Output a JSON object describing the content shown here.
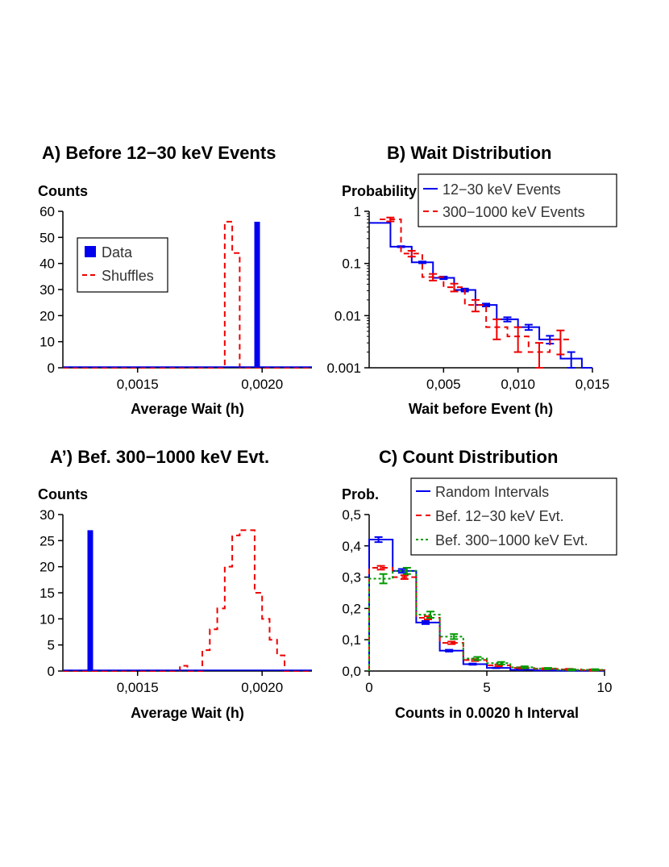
{
  "colors": {
    "blue": "#0000ee",
    "red": "#ee0000",
    "green": "#009900",
    "axis": "#000000"
  },
  "chart_data": [
    {
      "id": "A",
      "type": "histogram",
      "title": "A) Before 12−30 keV Events",
      "ylabel": "Counts",
      "xlabel": "Average Wait (h)",
      "xlim": [
        0.0012,
        0.0022
      ],
      "ylim": [
        0,
        60
      ],
      "xticks": [
        0.0015,
        0.002
      ],
      "xtick_labels": [
        "0,0015",
        "0,0020"
      ],
      "yticks": [
        0,
        10,
        20,
        30,
        40,
        50,
        60
      ],
      "ytick_labels": [
        "0",
        "10",
        "20",
        "30",
        "40",
        "50",
        "60"
      ],
      "legend": {
        "entries": [
          "Data",
          "Shuffles"
        ],
        "position": "upper-left"
      },
      "data_value": 0.00198,
      "data_count": 56,
      "shuffles": {
        "bin_edges": [
          0.00185,
          0.00188,
          0.00191,
          0.00194
        ],
        "counts": [
          56,
          44,
          0
        ]
      }
    },
    {
      "id": "B",
      "type": "step",
      "yscale": "log",
      "title": "B) Wait Distribution",
      "ylabel": "Probability",
      "xlabel": "Wait before Event (h)",
      "xlim": [
        0,
        0.015
      ],
      "ylim": [
        0.001,
        1
      ],
      "xticks": [
        0.005,
        0.01,
        0.015
      ],
      "xtick_labels": [
        "0,005",
        "0,010",
        "0,015"
      ],
      "yticks": [
        1,
        0.1,
        0.01,
        0.001
      ],
      "ytick_labels": [
        "1",
        "0.1",
        "0.01",
        "0.001"
      ],
      "legend": {
        "entries": [
          "12−30 keV Events",
          "300−1000 keV Events"
        ],
        "position": "top-right"
      },
      "series": [
        {
          "name": "12−30 keV Events",
          "style": "solid",
          "bin_edges": [
            0,
            0.00143,
            0.00286,
            0.00429,
            0.00571,
            0.00714,
            0.00857,
            0.01,
            0.01143,
            0.01286,
            0.01429,
            0.015
          ],
          "values": [
            0.6,
            0.21,
            0.105,
            0.053,
            0.031,
            0.016,
            0.0085,
            0.006,
            0.0035,
            0.0015,
            0.001
          ],
          "errors": [
            0,
            0.005,
            0.004,
            0.003,
            0.002,
            0.001,
            0.0008,
            0.0007,
            0.0006,
            0.0005,
            0
          ]
        },
        {
          "name": "300−1000 keV Events",
          "style": "dashed",
          "bin_edges": [
            0.00071,
            0.00214,
            0.00357,
            0.005,
            0.00643,
            0.00786,
            0.00929,
            0.01071,
            0.01214,
            0.01357
          ],
          "values": [
            0.7,
            0.155,
            0.055,
            0.035,
            0.016,
            0.006,
            0.004,
            0.002,
            0.0035
          ],
          "errors": [
            0.06,
            0.02,
            0.008,
            0.006,
            0.004,
            0.0025,
            0.002,
            0.001,
            0.0017
          ]
        }
      ]
    },
    {
      "id": "A2",
      "type": "histogram",
      "title": "A’) Bef. 300−1000 keV Evt.",
      "ylabel": "Counts",
      "xlabel": "Average Wait (h)",
      "xlim": [
        0.0012,
        0.0022
      ],
      "ylim": [
        0,
        30
      ],
      "xticks": [
        0.0015,
        0.002
      ],
      "xtick_labels": [
        "0,0015",
        "0,0020"
      ],
      "yticks": [
        0,
        5,
        10,
        15,
        20,
        25,
        30
      ],
      "ytick_labels": [
        "0",
        "5",
        "10",
        "15",
        "20",
        "25",
        "30"
      ],
      "data_value": 0.00131,
      "data_count": 27,
      "shuffles": {
        "bin_edges": [
          0.00167,
          0.0017,
          0.00173,
          0.00176,
          0.00179,
          0.00182,
          0.00185,
          0.00188,
          0.00191,
          0.00194,
          0.00197,
          0.002,
          0.00203,
          0.00206,
          0.00209,
          0.00212
        ],
        "counts": [
          1,
          0,
          0,
          4,
          8,
          12,
          20,
          26,
          27,
          27,
          15,
          10,
          6,
          3,
          0
        ]
      }
    },
    {
      "id": "C",
      "type": "step",
      "title": "C) Count Distribution",
      "ylabel": "Prob.",
      "xlabel": "Counts in 0.0020 h Interval",
      "xlim": [
        0,
        10
      ],
      "ylim": [
        0,
        0.5
      ],
      "xticks": [
        0,
        5,
        10
      ],
      "xtick_labels": [
        "0",
        "5",
        "10"
      ],
      "yticks": [
        0,
        0.1,
        0.2,
        0.3,
        0.4,
        0.5
      ],
      "ytick_labels": [
        "0,0",
        "0,1",
        "0,2",
        "0,3",
        "0,4",
        "0,5"
      ],
      "legend": {
        "entries": [
          "Random Intervals",
          "Bef. 12−30 keV Evt.",
          "Bef. 300−1000 keV Evt."
        ],
        "position": "top-right"
      },
      "series": [
        {
          "name": "Random Intervals",
          "style": "solid",
          "bin_edges": [
            0,
            1,
            2,
            3,
            4,
            5,
            6,
            7,
            8,
            9,
            10
          ],
          "values": [
            0.42,
            0.32,
            0.155,
            0.065,
            0.022,
            0.01,
            0.004,
            0.002,
            0.001,
            0.001
          ],
          "errors": [
            0.008,
            0.006,
            0.005,
            0.003,
            0.002,
            0.001,
            0.001,
            0,
            0,
            0
          ]
        },
        {
          "name": "Bef. 12−30 keV Evt.",
          "style": "dashed",
          "bin_edges": [
            0,
            1,
            2,
            3,
            4,
            5,
            6,
            7,
            8,
            9,
            10
          ],
          "values": [
            0.33,
            0.3,
            0.17,
            0.09,
            0.035,
            0.018,
            0.01,
            0.007,
            0.005,
            0.003
          ],
          "errors": [
            0.006,
            0.006,
            0.005,
            0.004,
            0.003,
            0.003,
            0.002,
            0.002,
            0.002,
            0.002
          ]
        },
        {
          "name": "Bef. 300−1000 keV Evt.",
          "style": "dotted",
          "bin_edges": [
            0,
            1,
            2,
            3,
            4,
            5,
            6,
            7,
            8,
            9,
            10
          ],
          "values": [
            0.295,
            0.32,
            0.18,
            0.11,
            0.04,
            0.025,
            0.012,
            0.008,
            0.004,
            0.004
          ],
          "errors": [
            0.015,
            0.01,
            0.01,
            0.008,
            0.005,
            0.004,
            0.003,
            0.002,
            0.002,
            0.002
          ]
        }
      ]
    }
  ]
}
